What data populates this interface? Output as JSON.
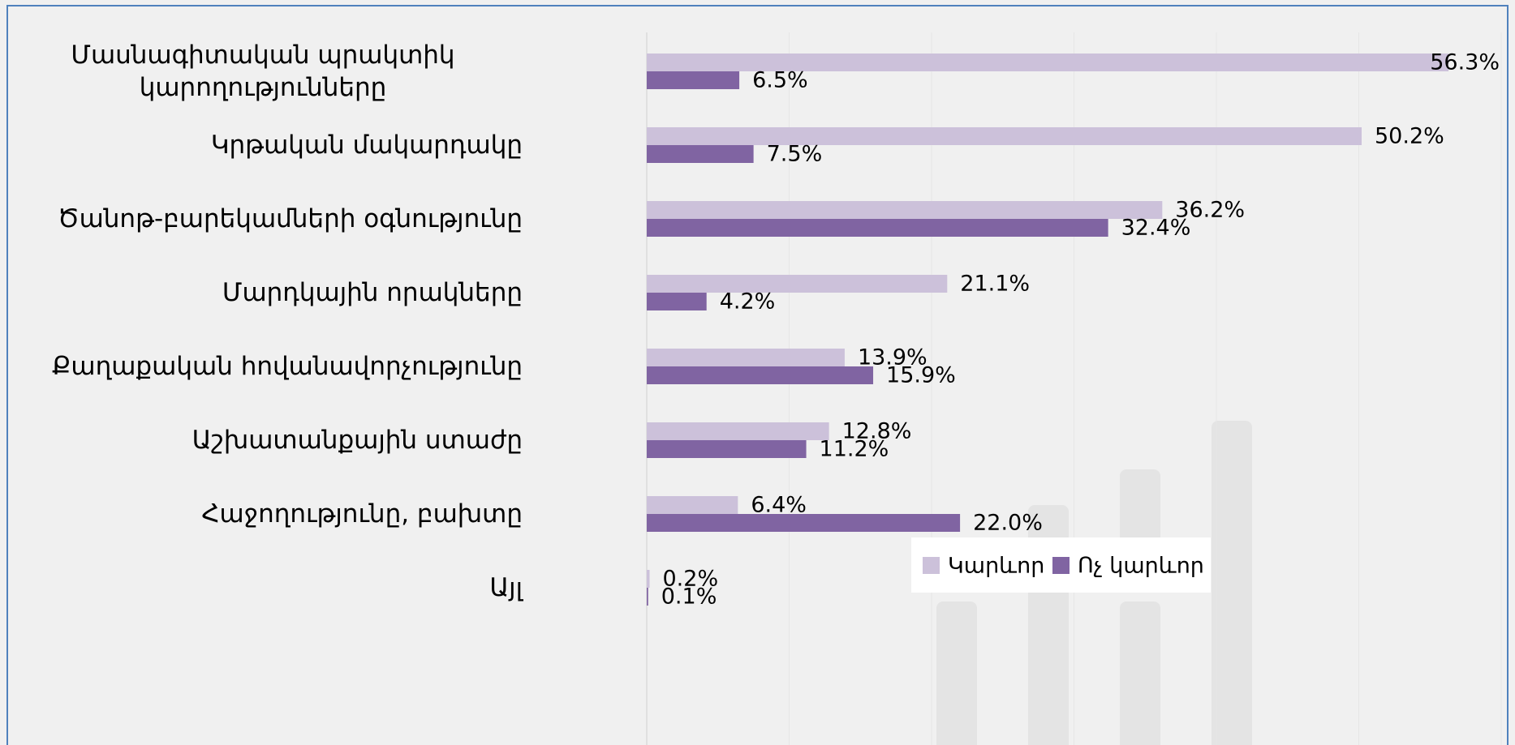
{
  "chart_data": {
    "type": "hbar",
    "categories": [
      "Մասնագիտական պրակտիկ կարողությունները",
      "Կրթական մակարդակը",
      "Ծանոթ-բարեկամների օգնությունը",
      "Մարդկային որակները",
      "Քաղաքական հովանավորչությունը",
      "Աշխատանքային ստաժը",
      "Հաջողությունը, բախտը",
      "Այլ"
    ],
    "series": [
      {
        "name": "Կարևոր",
        "color": "#ccc1da",
        "values": [
          56.3,
          50.2,
          36.2,
          21.1,
          13.9,
          12.8,
          6.4,
          0.2
        ],
        "value_labels": [
          "56.3%",
          "50.2%",
          "36.2%",
          "21.1%",
          "13.9%",
          "12.8%",
          "6.4%",
          "0.2%"
        ]
      },
      {
        "name": "Ոչ կարևոր",
        "color": "#8064a2",
        "values": [
          6.5,
          7.5,
          32.4,
          4.2,
          15.9,
          11.2,
          22.0,
          0.1
        ],
        "value_labels": [
          "6.5%",
          "7.5%",
          "32.4%",
          "4.2%",
          "15.9%",
          "11.2%",
          "22.0%",
          "0.1%"
        ]
      }
    ],
    "xlim": [
      0,
      60
    ],
    "xticks": [
      0,
      10,
      20,
      30,
      40,
      50,
      60
    ],
    "grid": true,
    "legend": "lower right"
  }
}
